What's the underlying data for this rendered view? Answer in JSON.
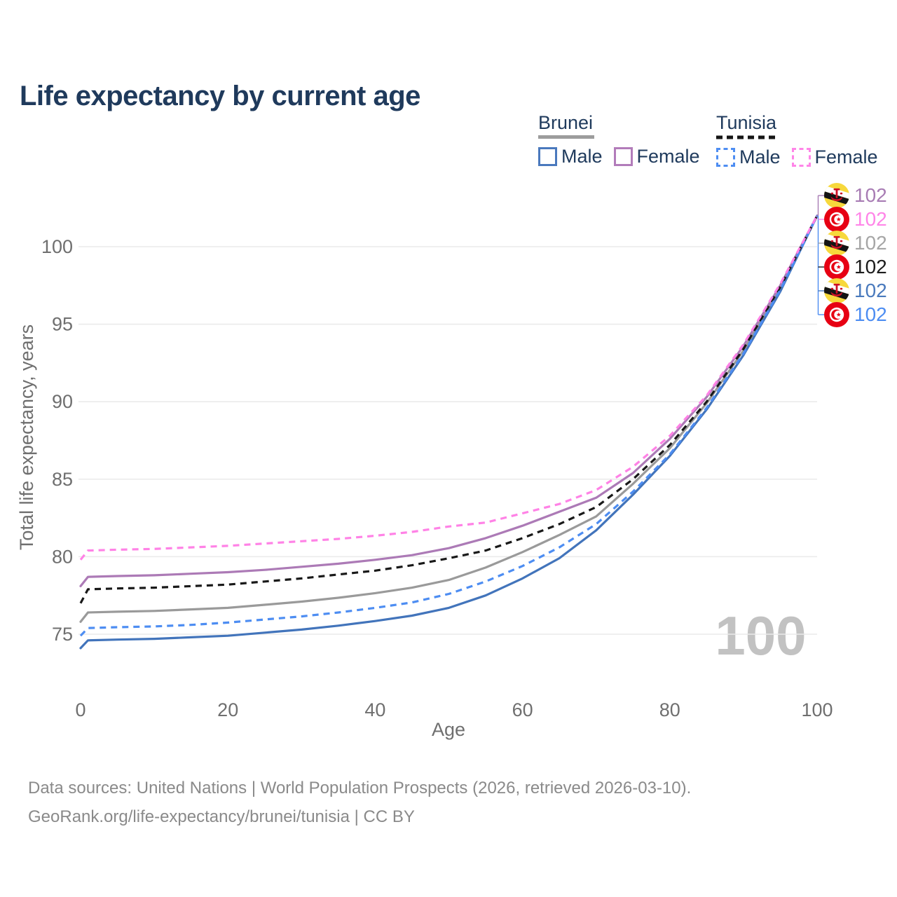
{
  "page": {
    "title": "Life expectancy by current age"
  },
  "legend": {
    "brunei": {
      "label": "Brunei",
      "male_label": "Male",
      "female_label": "Female"
    },
    "tunisia": {
      "label": "Tunisia",
      "male_label": "Male",
      "female_label": "Female"
    }
  },
  "watermark": "100",
  "endpoints": [
    {
      "flag": "brunei",
      "series": "Brunei Female",
      "value": "102",
      "color": "#A87CB4"
    },
    {
      "flag": "tunisia",
      "series": "Tunisia Female",
      "value": "102",
      "color": "#FF85E8"
    },
    {
      "flag": "brunei",
      "series": "Brunei Total",
      "value": "102",
      "color": "#A6A6A6"
    },
    {
      "flag": "tunisia",
      "series": "Tunisia Total",
      "value": "102",
      "color": "#1C1C1C"
    },
    {
      "flag": "brunei",
      "series": "Brunei Male",
      "value": "102",
      "color": "#4A7ABD"
    },
    {
      "flag": "tunisia",
      "series": "Tunisia Male",
      "value": "102",
      "color": "#4D8DF2"
    }
  ],
  "footer": {
    "line1": "Data sources: United Nations | World Population Prospects (2026, retrieved 2026-03-10).",
    "line2": "GeoRank.org/life-expectancy/brunei/tunisia | CC BY"
  },
  "chart_data": {
    "type": "line",
    "title": "Life expectancy by current age",
    "xlabel": "Age",
    "ylabel": "Total life expectancy, years",
    "xlim": [
      0,
      100
    ],
    "ylim": [
      73,
      103
    ],
    "xticks": [
      0,
      20,
      40,
      60,
      80,
      100
    ],
    "yticks": [
      75,
      80,
      85,
      90,
      95,
      100
    ],
    "grid": "horizontal",
    "legend_position": "top-right",
    "x": [
      0,
      1,
      5,
      10,
      15,
      20,
      25,
      30,
      35,
      40,
      45,
      50,
      55,
      60,
      65,
      70,
      75,
      80,
      85,
      90,
      95,
      100
    ],
    "series": [
      {
        "name": "Brunei Total",
        "country": "Brunei",
        "sex": "Total",
        "style": "solid",
        "color": "#9A9A9A",
        "values": [
          75.8,
          76.4,
          76.45,
          76.5,
          76.6,
          76.7,
          76.9,
          77.1,
          77.35,
          77.65,
          78.0,
          78.5,
          79.3,
          80.3,
          81.4,
          82.6,
          84.7,
          87.0,
          89.9,
          93.3,
          97.3,
          102
        ]
      },
      {
        "name": "Brunei Male",
        "country": "Brunei",
        "sex": "Male",
        "style": "solid",
        "color": "#4274BB",
        "values": [
          74.1,
          74.6,
          74.65,
          74.7,
          74.8,
          74.9,
          75.1,
          75.3,
          75.55,
          75.85,
          76.2,
          76.7,
          77.5,
          78.6,
          79.9,
          81.7,
          84.0,
          86.5,
          89.5,
          93.0,
          97.1,
          102
        ]
      },
      {
        "name": "Brunei Female",
        "country": "Brunei",
        "sex": "Female",
        "style": "solid",
        "color": "#AC7AB6",
        "values": [
          78.1,
          78.7,
          78.75,
          78.8,
          78.9,
          79.0,
          79.15,
          79.35,
          79.55,
          79.8,
          80.1,
          80.55,
          81.2,
          82.0,
          82.9,
          83.8,
          85.4,
          87.6,
          90.3,
          93.6,
          97.5,
          102
        ]
      },
      {
        "name": "Tunisia Total",
        "country": "Tunisia",
        "sex": "Total",
        "style": "dashed",
        "color": "#191919",
        "values": [
          77.0,
          77.9,
          77.95,
          78.0,
          78.1,
          78.2,
          78.4,
          78.6,
          78.85,
          79.1,
          79.45,
          79.9,
          80.4,
          81.2,
          82.1,
          83.2,
          85.0,
          87.2,
          90.0,
          93.4,
          97.4,
          102
        ]
      },
      {
        "name": "Tunisia Male",
        "country": "Tunisia",
        "sex": "Male",
        "style": "dashed",
        "color": "#4D8DF2",
        "values": [
          74.9,
          75.4,
          75.45,
          75.5,
          75.6,
          75.75,
          75.95,
          76.15,
          76.4,
          76.7,
          77.05,
          77.6,
          78.4,
          79.4,
          80.6,
          82.1,
          84.2,
          86.6,
          89.6,
          93.1,
          97.2,
          102
        ]
      },
      {
        "name": "Tunisia Female",
        "country": "Tunisia",
        "sex": "Female",
        "style": "dashed",
        "color": "#FF82E6",
        "values": [
          79.8,
          80.4,
          80.45,
          80.5,
          80.6,
          80.7,
          80.85,
          81.0,
          81.15,
          81.35,
          81.6,
          81.95,
          82.2,
          82.8,
          83.4,
          84.3,
          85.8,
          87.8,
          90.4,
          93.7,
          97.6,
          102
        ]
      }
    ]
  }
}
